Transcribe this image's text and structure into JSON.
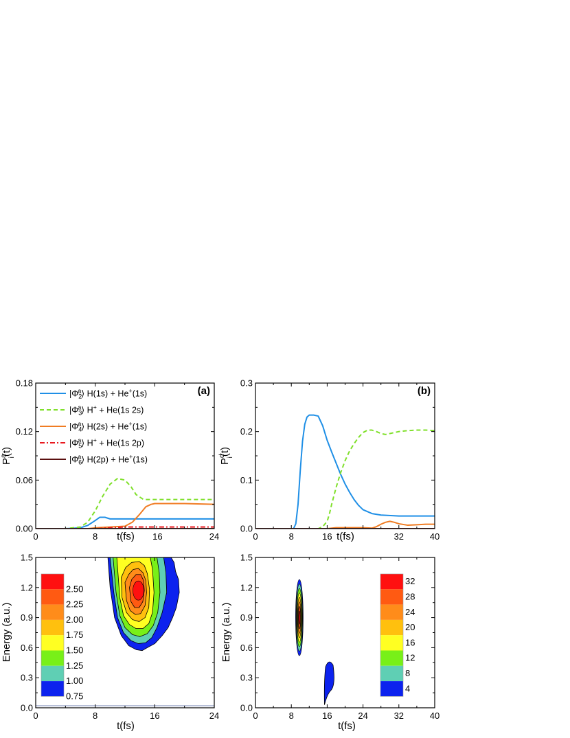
{
  "chart_data": [
    {
      "type": "line",
      "panel": "(a)",
      "xlabel": "t(fs)",
      "ylabel": "P",
      "ylabel_sup": "a",
      "ylabel_sub": "i",
      "ylabel_tail": "(t)",
      "xlim": [
        0,
        24
      ],
      "ylim": [
        0,
        0.18
      ],
      "xticks": [
        0,
        8,
        16,
        24
      ],
      "yticks": [
        0.0,
        0.06,
        0.12,
        0.18
      ],
      "ytick_labels": [
        "0.00",
        "0.06",
        "0.12",
        "0.18"
      ],
      "legend_position": "top-left",
      "series": [
        {
          "name": "|Φ2a⟩ H(1s) + He+(1s)",
          "state": "2",
          "tail": " H(1s) + He",
          "ion": "+",
          "end": "(1s)",
          "color": "#1f8fe6",
          "dash": "",
          "x": [
            0,
            4,
            6,
            7,
            8,
            8.6,
            9.3,
            10,
            11,
            12,
            16,
            20,
            24
          ],
          "y": [
            0,
            0,
            0.001,
            0.004,
            0.01,
            0.014,
            0.014,
            0.012,
            0.012,
            0.012,
            0.012,
            0.012,
            0.012
          ]
        },
        {
          "name": "|Φ3a⟩ H+ + He(1s 2s)",
          "state": "3",
          "tail": " H",
          "ion": "+",
          "end": " + He(1s 2s)",
          "color": "#7fe02a",
          "dash": "6,4",
          "x": [
            0,
            4,
            6,
            7,
            8,
            9,
            10,
            11,
            12,
            12.8,
            13.5,
            14.5,
            16,
            20,
            24
          ],
          "y": [
            0,
            0.0,
            0.002,
            0.008,
            0.022,
            0.04,
            0.055,
            0.062,
            0.06,
            0.052,
            0.042,
            0.036,
            0.036,
            0.036,
            0.036
          ]
        },
        {
          "name": "|Φ4a⟩ H(2s) + He+(1s)",
          "state": "4",
          "tail": " H(2s) + He",
          "ion": "+",
          "end": "(1s)",
          "color": "#f07c23",
          "dash": "",
          "x": [
            0,
            7,
            8,
            10,
            12,
            13,
            14,
            14.8,
            15.5,
            16,
            17,
            20,
            24
          ],
          "y": [
            0,
            0,
            0.001,
            0.002,
            0.003,
            0.008,
            0.018,
            0.027,
            0.03,
            0.031,
            0.031,
            0.031,
            0.03
          ]
        },
        {
          "name": "|Φ5a⟩ H+ + He(1s 2p)",
          "state": "5",
          "tail": " H",
          "ion": "+",
          "end": " + He(1s 2p)",
          "color": "#e8191f",
          "dash": "7,3,2,3",
          "x": [
            0,
            8,
            10,
            12,
            14,
            16,
            20,
            24
          ],
          "y": [
            0,
            0,
            0.001,
            0.002,
            0.002,
            0.002,
            0.002,
            0.002
          ]
        },
        {
          "name": "|Φ6a⟩ H(2p) + He+(1s)",
          "state": "6",
          "tail": " H(2p) + He",
          "ion": "+",
          "end": "(1s)",
          "color": "#5a0f0f",
          "dash": "",
          "x": [
            0,
            24
          ],
          "y": [
            0,
            0
          ]
        }
      ]
    },
    {
      "type": "line",
      "panel": "(b)",
      "xlabel": "t(fs)",
      "ylabel": "P",
      "ylabel_sup": "d",
      "ylabel_sub": "i",
      "ylabel_tail": "(t)",
      "xlim": [
        0,
        40
      ],
      "ylim": [
        0,
        0.3
      ],
      "xticks": [
        0,
        8,
        16,
        24,
        32,
        40
      ],
      "xtick_labels_drawn": [
        "0",
        "8",
        "16",
        "24",
        "32",
        "40"
      ],
      "yticks": [
        0.0,
        0.1,
        0.2,
        0.3
      ],
      "ytick_labels": [
        "0.0",
        "0.1",
        "0.2",
        "0.3"
      ],
      "series": [
        {
          "color": "#1f8fe6",
          "dash": "",
          "x": [
            0,
            8.5,
            9.0,
            9.5,
            10.0,
            10.5,
            11.0,
            11.5,
            12,
            13,
            14,
            15,
            16,
            17,
            18,
            19,
            20,
            21,
            22,
            23,
            24,
            26,
            28,
            32,
            36,
            40
          ],
          "y": [
            0,
            0,
            0.01,
            0.05,
            0.12,
            0.18,
            0.215,
            0.23,
            0.234,
            0.234,
            0.232,
            0.212,
            0.182,
            0.158,
            0.135,
            0.112,
            0.092,
            0.075,
            0.06,
            0.048,
            0.039,
            0.031,
            0.028,
            0.026,
            0.026,
            0.026
          ]
        },
        {
          "color": "#7fe02a",
          "dash": "6,4",
          "x": [
            0,
            14,
            15,
            16,
            16.5,
            17,
            18,
            19,
            20,
            21,
            22,
            23,
            24,
            25,
            26,
            27,
            28,
            29,
            30,
            32,
            34,
            36,
            38,
            40
          ],
          "y": [
            0,
            0,
            0.004,
            0.015,
            0.03,
            0.05,
            0.085,
            0.115,
            0.14,
            0.16,
            0.175,
            0.188,
            0.198,
            0.203,
            0.203,
            0.2,
            0.196,
            0.194,
            0.196,
            0.2,
            0.202,
            0.203,
            0.203,
            0.202
          ]
        },
        {
          "color": "#f07c23",
          "dash": "",
          "x": [
            0,
            16,
            18,
            20,
            22,
            24,
            26,
            27,
            28,
            29,
            30,
            31,
            32,
            34,
            36,
            38,
            40
          ],
          "y": [
            0,
            0,
            0.002,
            0.002,
            0.002,
            0.002,
            0.001,
            0.004,
            0.009,
            0.013,
            0.015,
            0.013,
            0.01,
            0.007,
            0.008,
            0.009,
            0.009
          ]
        },
        {
          "color": "#e8191f",
          "dash": "7,3,2,3",
          "x": [
            0,
            40
          ],
          "y": [
            0,
            0
          ]
        },
        {
          "color": "#5a0f0f",
          "dash": "",
          "x": [
            0,
            40
          ],
          "y": [
            0,
            0
          ]
        }
      ]
    },
    {
      "type": "heatmap",
      "xlabel": "t(fs)",
      "ylabel": "Energy (a.u.)",
      "xlim": [
        0,
        24
      ],
      "ylim": [
        0,
        1.5
      ],
      "xticks": [
        0,
        8,
        16,
        24
      ],
      "yticks": [
        0.0,
        0.3,
        0.6,
        0.9,
        1.2,
        1.5
      ],
      "ytick_labels": [
        "0.0",
        "0.3",
        "0.6",
        "0.9",
        "1.2",
        "1.5"
      ],
      "colorbar_labels": [
        "2.50",
        "2.25",
        "2.00",
        "1.75",
        "1.50",
        "1.25",
        "1.00",
        "0.75"
      ],
      "colorbar_colors": [
        "#ff1010",
        "#ff5a12",
        "#ff8c1a",
        "#ffc00e",
        "#ffff22",
        "#78f018",
        "#5fcfb4",
        "#0c22ee"
      ],
      "peak": {
        "t": 13.8,
        "energy": 1.17
      },
      "contours": [
        {
          "level": 0.75,
          "t": [
            9.7,
            10.0,
            10.6,
            11.5,
            12.5,
            13.5,
            14.3,
            15.0,
            16.0,
            17.0,
            17.8,
            18.4,
            18.9,
            19.3,
            19.2,
            18.8,
            18.6,
            18.2,
            9.7
          ],
          "e": [
            1.5,
            1.2,
            0.9,
            0.72,
            0.62,
            0.58,
            0.57,
            0.6,
            0.64,
            0.72,
            0.8,
            0.9,
            1.0,
            1.15,
            1.28,
            1.36,
            1.45,
            1.5,
            1.5
          ]
        },
        {
          "level": 1.0,
          "t": [
            10.0,
            10.5,
            11.0,
            11.8,
            12.8,
            13.8,
            14.8,
            15.6,
            16.3,
            17.0,
            17.6,
            17.5,
            17.2,
            10.0
          ],
          "e": [
            1.5,
            1.15,
            0.9,
            0.75,
            0.67,
            0.64,
            0.65,
            0.7,
            0.8,
            0.95,
            1.15,
            1.35,
            1.5,
            1.5
          ]
        },
        {
          "level": 1.25,
          "t": [
            10.4,
            10.8,
            11.3,
            12.0,
            13.0,
            14.0,
            15.0,
            15.8,
            16.4,
            16.7,
            16.6,
            16.3,
            10.4
          ],
          "e": [
            1.5,
            1.15,
            0.92,
            0.8,
            0.73,
            0.71,
            0.74,
            0.82,
            0.95,
            1.15,
            1.35,
            1.5,
            1.5
          ]
        },
        {
          "level": 1.5,
          "t": [
            10.9,
            11.3,
            11.8,
            12.6,
            13.5,
            14.4,
            15.2,
            15.7,
            15.9,
            15.7,
            15.4,
            10.9
          ],
          "e": [
            1.5,
            1.1,
            0.92,
            0.83,
            0.79,
            0.79,
            0.84,
            0.95,
            1.15,
            1.38,
            1.5,
            1.5
          ]
        },
        {
          "level": 1.75,
          "t": [
            11.5,
            11.6,
            12.2,
            13.0,
            13.9,
            14.7,
            15.2,
            15.3,
            15.0,
            14.6,
            13.9,
            12.9,
            12.1,
            11.5
          ],
          "e": [
            1.3,
            1.1,
            0.95,
            0.88,
            0.86,
            0.9,
            1.0,
            1.18,
            1.34,
            1.42,
            1.46,
            1.45,
            1.4,
            1.3
          ]
        },
        {
          "level": 2.0,
          "t": [
            12.0,
            12.2,
            12.7,
            13.4,
            14.1,
            14.7,
            14.9,
            14.8,
            14.4,
            13.8,
            13.1,
            12.5,
            12.0
          ],
          "e": [
            1.25,
            1.07,
            0.97,
            0.93,
            0.94,
            1.02,
            1.15,
            1.27,
            1.35,
            1.39,
            1.38,
            1.33,
            1.25
          ]
        },
        {
          "level": 2.25,
          "t": [
            12.6,
            12.8,
            13.3,
            13.9,
            14.4,
            14.6,
            14.5,
            14.1,
            13.5,
            12.9,
            12.6
          ],
          "e": [
            1.2,
            1.06,
            1.0,
            1.0,
            1.06,
            1.17,
            1.27,
            1.33,
            1.33,
            1.28,
            1.2
          ]
        }
      ]
    },
    {
      "type": "heatmap",
      "xlabel": "t(fs)",
      "ylabel": "Energy (a.u.)",
      "xlim": [
        0,
        40
      ],
      "ylim": [
        0,
        1.5
      ],
      "xticks": [
        0,
        8,
        16,
        24,
        32,
        40
      ],
      "yticks": [
        0.0,
        0.3,
        0.6,
        0.9,
        1.2,
        1.5
      ],
      "ytick_labels": [
        "0.0",
        "0.3",
        "0.6",
        "0.9",
        "1.2",
        "1.5"
      ],
      "colorbar_labels": [
        "32",
        "28",
        "24",
        "20",
        "16",
        "12",
        "8",
        "4"
      ],
      "colorbar_colors": [
        "#ff1010",
        "#ff5a12",
        "#ff8c1a",
        "#ffc00e",
        "#ffff22",
        "#78f018",
        "#5fcfb4",
        "#0c22ee"
      ],
      "blobs": [
        {
          "t": 9.8,
          "energy": 0.9,
          "half_width_t": 0.85,
          "half_height_e": 0.38,
          "levels": 8
        },
        {
          "t": 16.6,
          "energy": 0.3,
          "half_width_t": 1.2,
          "half_height_e": 0.18,
          "levels": 1
        }
      ]
    }
  ]
}
